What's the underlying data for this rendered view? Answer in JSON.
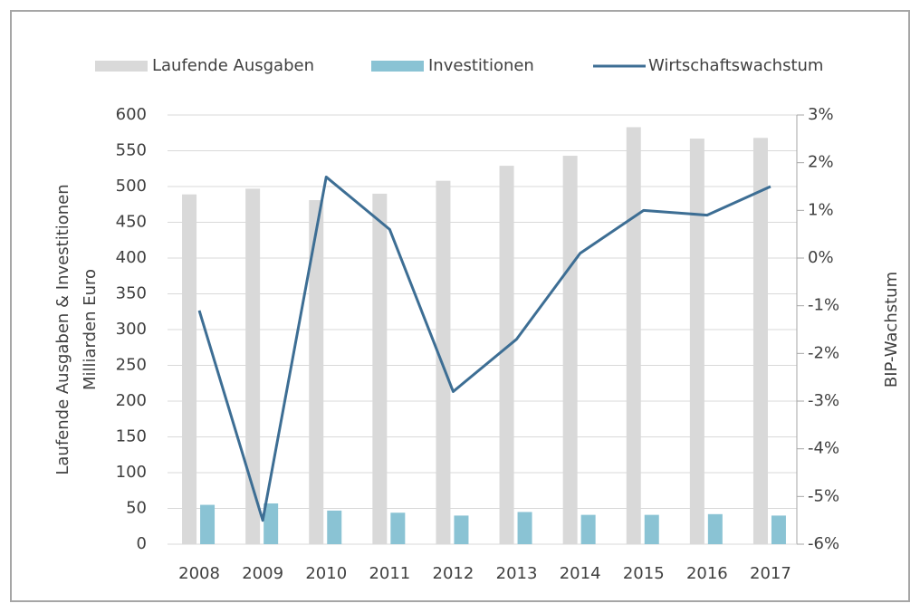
{
  "chart_data": {
    "type": "bar",
    "categories": [
      "2008",
      "2009",
      "2010",
      "2011",
      "2012",
      "2013",
      "2014",
      "2015",
      "2016",
      "2017"
    ],
    "series": [
      {
        "name": "Laufende Ausgaben",
        "color": "#d9d9d9",
        "type": "bar",
        "values": [
          489,
          497,
          481,
          490,
          508,
          529,
          543,
          583,
          567,
          568
        ]
      },
      {
        "name": "Investitionen",
        "color": "#8ac3d4",
        "type": "bar",
        "values": [
          55,
          57,
          47,
          44,
          40,
          45,
          41,
          41,
          42,
          40
        ]
      },
      {
        "name": "Wirtschaftswachstum",
        "color": "#3d6e94",
        "type": "line",
        "axis": "y2",
        "values": [
          -1.1,
          -5.5,
          1.7,
          0.6,
          -2.8,
          -1.7,
          0.1,
          1.0,
          0.9,
          1.5
        ]
      }
    ],
    "ylabel": [
      "Laufende Ausgaben & Investitionen",
      "Milliarden Euro"
    ],
    "y2label": "BIP-Wachstum",
    "ylim": [
      0,
      600
    ],
    "yticks": [
      0,
      50,
      100,
      150,
      200,
      250,
      300,
      350,
      400,
      450,
      500,
      550,
      600
    ],
    "y2lim": [
      -6,
      3
    ],
    "y2ticks": [
      {
        "value": -6,
        "label": "-6%"
      },
      {
        "value": -5,
        "label": "-5%"
      },
      {
        "value": -4,
        "label": "-4%"
      },
      {
        "value": -3,
        "label": "-3%"
      },
      {
        "value": -2,
        "label": "-2%"
      },
      {
        "value": -1,
        "label": "-1%"
      },
      {
        "value": 0,
        "label": "0%"
      },
      {
        "value": 1,
        "label": "1%"
      },
      {
        "value": 2,
        "label": "2%"
      },
      {
        "value": 3,
        "label": "3%"
      }
    ],
    "grid": true,
    "legend": "top"
  }
}
